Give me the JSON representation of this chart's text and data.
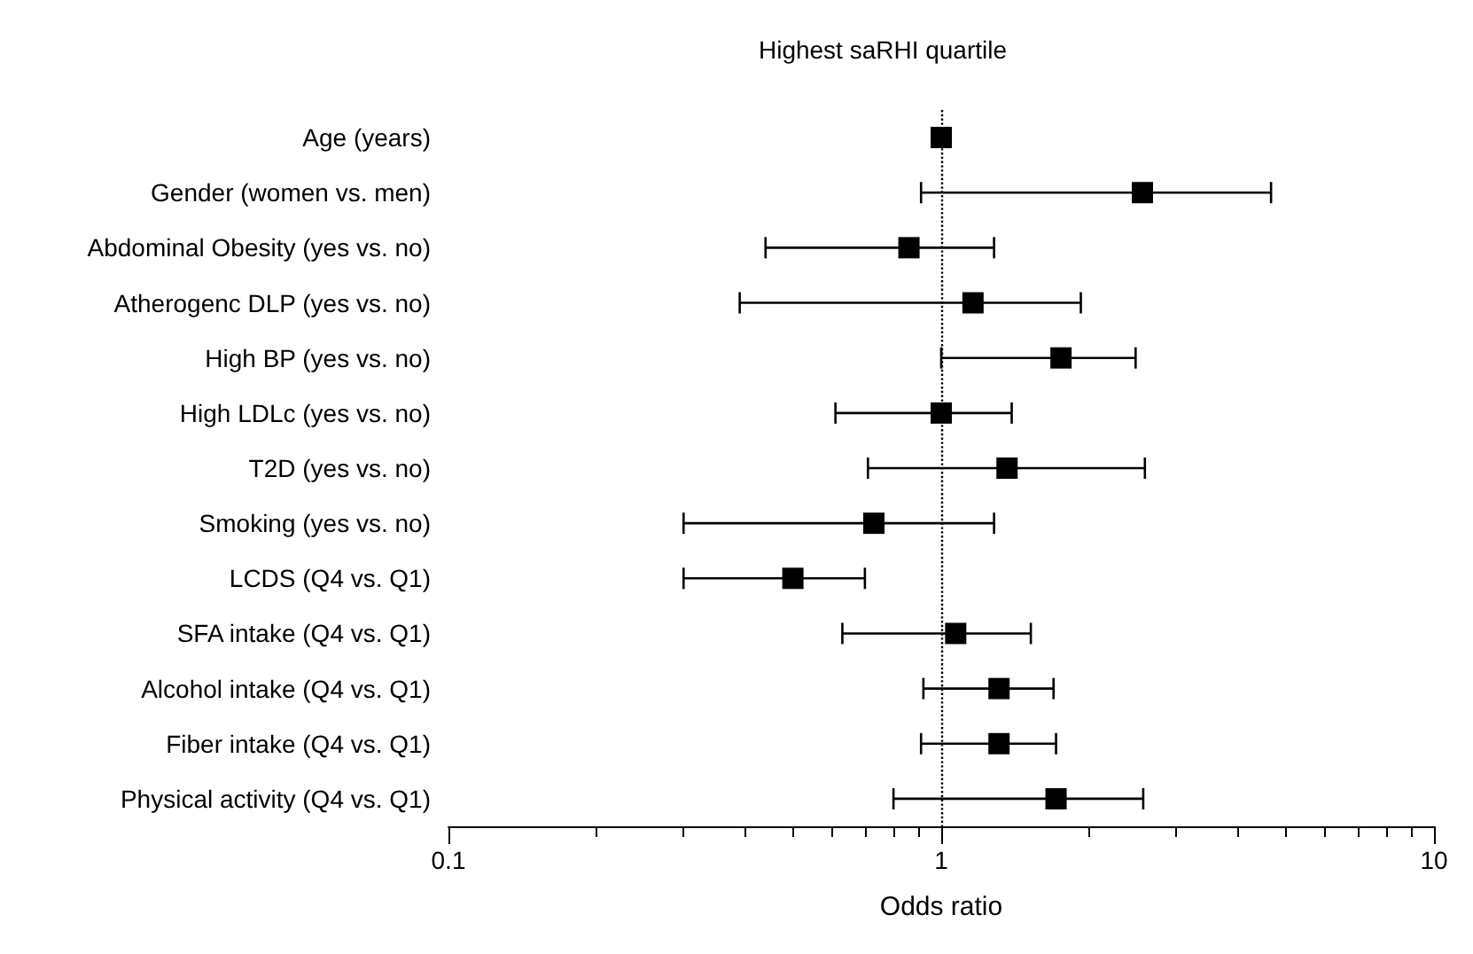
{
  "chart_data": {
    "type": "scatter",
    "title": "Highest saRHI quartile",
    "xlabel": "Odds ratio",
    "orientation": "horizontal",
    "categories": [
      "Age (years)",
      "Gender (women vs. men)",
      "Abdominal Obesity (yes vs. no)",
      "Atherogenc DLP (yes vs. no)",
      "High BP (yes vs. no)",
      "High LDLc (yes vs. no)",
      "T2D (yes vs. no)",
      "Smoking (yes vs. no)",
      "LCDS (Q4 vs. Q1)",
      "SFA intake (Q4 vs. Q1)",
      "Alcohol intake (Q4 vs. Q1)",
      "Fiber intake (Q4 vs. Q1)",
      "Physical activity (Q4 vs. Q1)"
    ],
    "values": [
      1.0,
      2.56,
      0.86,
      1.16,
      1.75,
      1.0,
      1.36,
      0.73,
      0.5,
      1.07,
      1.31,
      1.31,
      1.71
    ],
    "errors": [
      [
        0.96,
        1.03
      ],
      [
        0.91,
        4.67
      ],
      [
        0.44,
        1.28
      ],
      [
        0.39,
        1.92
      ],
      [
        1.0,
        2.48
      ],
      [
        0.61,
        1.39
      ],
      [
        0.71,
        2.59
      ],
      [
        0.3,
        1.28
      ],
      [
        0.3,
        0.7
      ],
      [
        0.63,
        1.52
      ],
      [
        0.92,
        1.69
      ],
      [
        0.91,
        1.71
      ],
      [
        0.8,
        2.57
      ]
    ],
    "color": "#000000",
    "marker": "square",
    "log": "x",
    "xlim": [
      0.1,
      10
    ],
    "xticks": [
      0.1,
      1,
      10
    ],
    "grid": false,
    "ref_lines": [
      {
        "axis": "x",
        "value": 1,
        "line_style": "dotted",
        "color": "#000000"
      }
    ]
  }
}
